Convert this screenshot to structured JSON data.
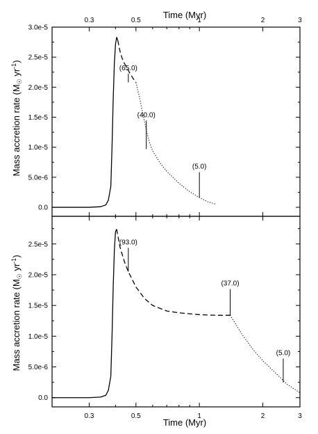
{
  "figure": {
    "top_axis_title": "Time (Myr)",
    "bottom_axis_title": "Time (Myr)",
    "ylabel_text": "Mass accretion rate (M",
    "ylabel_unit": " yr",
    "ylabel_exp": "-1",
    "ylabel_close": ")"
  },
  "chart_data": [
    {
      "type": "line",
      "panel": "top",
      "title": "",
      "xlabel": "Time (Myr)",
      "ylabel": "Mass accretion rate (M☉ yr⁻¹)",
      "x_scale": "log",
      "xlim": [
        0.2,
        3
      ],
      "ylim": [
        -1.5e-06,
        3e-05
      ],
      "x_ticks": [
        0.3,
        0.5,
        1,
        2,
        3
      ],
      "x_tick_labels": [
        "0.3",
        "0.5",
        "1",
        "2",
        "3"
      ],
      "y_ticks": [
        0,
        5e-06,
        1e-05,
        1.5e-05,
        2e-05,
        2.5e-05,
        3e-05
      ],
      "y_tick_labels": [
        "0.0",
        "5.0e-6",
        "1.0e-5",
        "1.5e-5",
        "2.0e-5",
        "2.5e-5",
        "3.0e-5"
      ],
      "grid": false,
      "series": [
        {
          "style": "solid",
          "x": [
            0.2,
            0.3,
            0.34,
            0.36,
            0.37,
            0.38,
            0.385,
            0.39,
            0.395,
            0.4,
            0.405,
            0.41
          ],
          "y": [
            0,
            0,
            1e-07,
            4e-07,
            1.2e-06,
            3.5e-06,
            1e-05,
            1.8e-05,
            2.4e-05,
            2.72e-05,
            2.83e-05,
            2.78e-05
          ]
        },
        {
          "style": "dashed",
          "x": [
            0.41,
            0.42,
            0.43,
            0.44,
            0.45,
            0.46,
            0.47,
            0.48,
            0.49,
            0.5
          ],
          "y": [
            2.78e-05,
            2.6e-05,
            2.48e-05,
            2.4e-05,
            2.34e-05,
            2.28e-05,
            2.22e-05,
            2.17e-05,
            2.12e-05,
            2.08e-05
          ]
        },
        {
          "style": "dotted",
          "x": [
            0.5,
            0.52,
            0.54,
            0.56,
            0.58,
            0.6,
            0.65,
            0.7,
            0.8,
            0.9,
            1.0,
            1.1,
            1.2
          ],
          "y": [
            2.08e-05,
            1.83e-05,
            1.55e-05,
            1.28e-05,
            1.08e-05,
            9.4e-06,
            7.4e-06,
            6e-06,
            4e-06,
            2.6e-06,
            1.6e-06,
            9e-07,
            5e-07
          ]
        }
      ],
      "annotations": [
        {
          "text": "(65.0)",
          "x": 0.46,
          "y": 2.26e-05,
          "tip": 2.08e-05
        },
        {
          "text": "(40.0)",
          "x": 0.56,
          "y": 1.48e-05,
          "tip": 9.7e-06
        },
        {
          "text": "(5.0)",
          "x": 1.0,
          "y": 6.2e-06,
          "tip": 1.6e-06
        }
      ]
    },
    {
      "type": "line",
      "panel": "bottom",
      "title": "",
      "xlabel": "Time (Myr)",
      "ylabel": "Mass accretion rate (M☉ yr⁻¹)",
      "x_scale": "log",
      "xlim": [
        0.2,
        3
      ],
      "ylim": [
        -1.5e-06,
        2.95e-05
      ],
      "x_ticks": [
        0.3,
        0.5,
        1,
        2,
        3
      ],
      "x_tick_labels": [
        "0.3",
        "0.5",
        "1",
        "2",
        "3"
      ],
      "y_ticks": [
        0,
        5e-06,
        1e-05,
        1.5e-05,
        2e-05,
        2.5e-05
      ],
      "y_tick_labels": [
        "0.0",
        "5.0e-6",
        "1.0e-5",
        "1.5e-5",
        "2.0e-5",
        "2.5e-5"
      ],
      "grid": false,
      "series": [
        {
          "style": "solid",
          "x": [
            0.2,
            0.3,
            0.34,
            0.36,
            0.37,
            0.38,
            0.385,
            0.39,
            0.395,
            0.4,
            0.405
          ],
          "y": [
            0,
            0,
            1e-07,
            4e-07,
            1.2e-06,
            3.5e-06,
            1e-05,
            1.8e-05,
            2.4e-05,
            2.7e-05,
            2.74e-05
          ]
        },
        {
          "style": "dashed",
          "x": [
            0.405,
            0.42,
            0.44,
            0.46,
            0.5,
            0.55,
            0.6,
            0.7,
            0.8,
            1.0,
            1.2,
            1.4
          ],
          "y": [
            2.74e-05,
            2.45e-05,
            2.22e-05,
            2.05e-05,
            1.8e-05,
            1.61e-05,
            1.5e-05,
            1.41e-05,
            1.38e-05,
            1.35e-05,
            1.34e-05,
            1.34e-05
          ]
        },
        {
          "style": "dotted",
          "x": [
            1.4,
            1.6,
            1.8,
            2.0,
            2.3,
            2.6,
            3.0
          ],
          "y": [
            1.34e-05,
            1.02e-05,
            7.8e-06,
            6e-06,
            4e-06,
            2.2e-06,
            8e-07
          ]
        }
      ],
      "annotations": [
        {
          "text": "(93.0)",
          "x": 0.46,
          "y": 2.47e-05,
          "tip": 2.05e-05
        },
        {
          "text": "(37.0)",
          "x": 1.4,
          "y": 1.8e-05,
          "tip": 1.34e-05
        },
        {
          "text": "(5.0)",
          "x": 2.5,
          "y": 6.7e-06,
          "tip": 2.5e-06
        }
      ]
    }
  ]
}
